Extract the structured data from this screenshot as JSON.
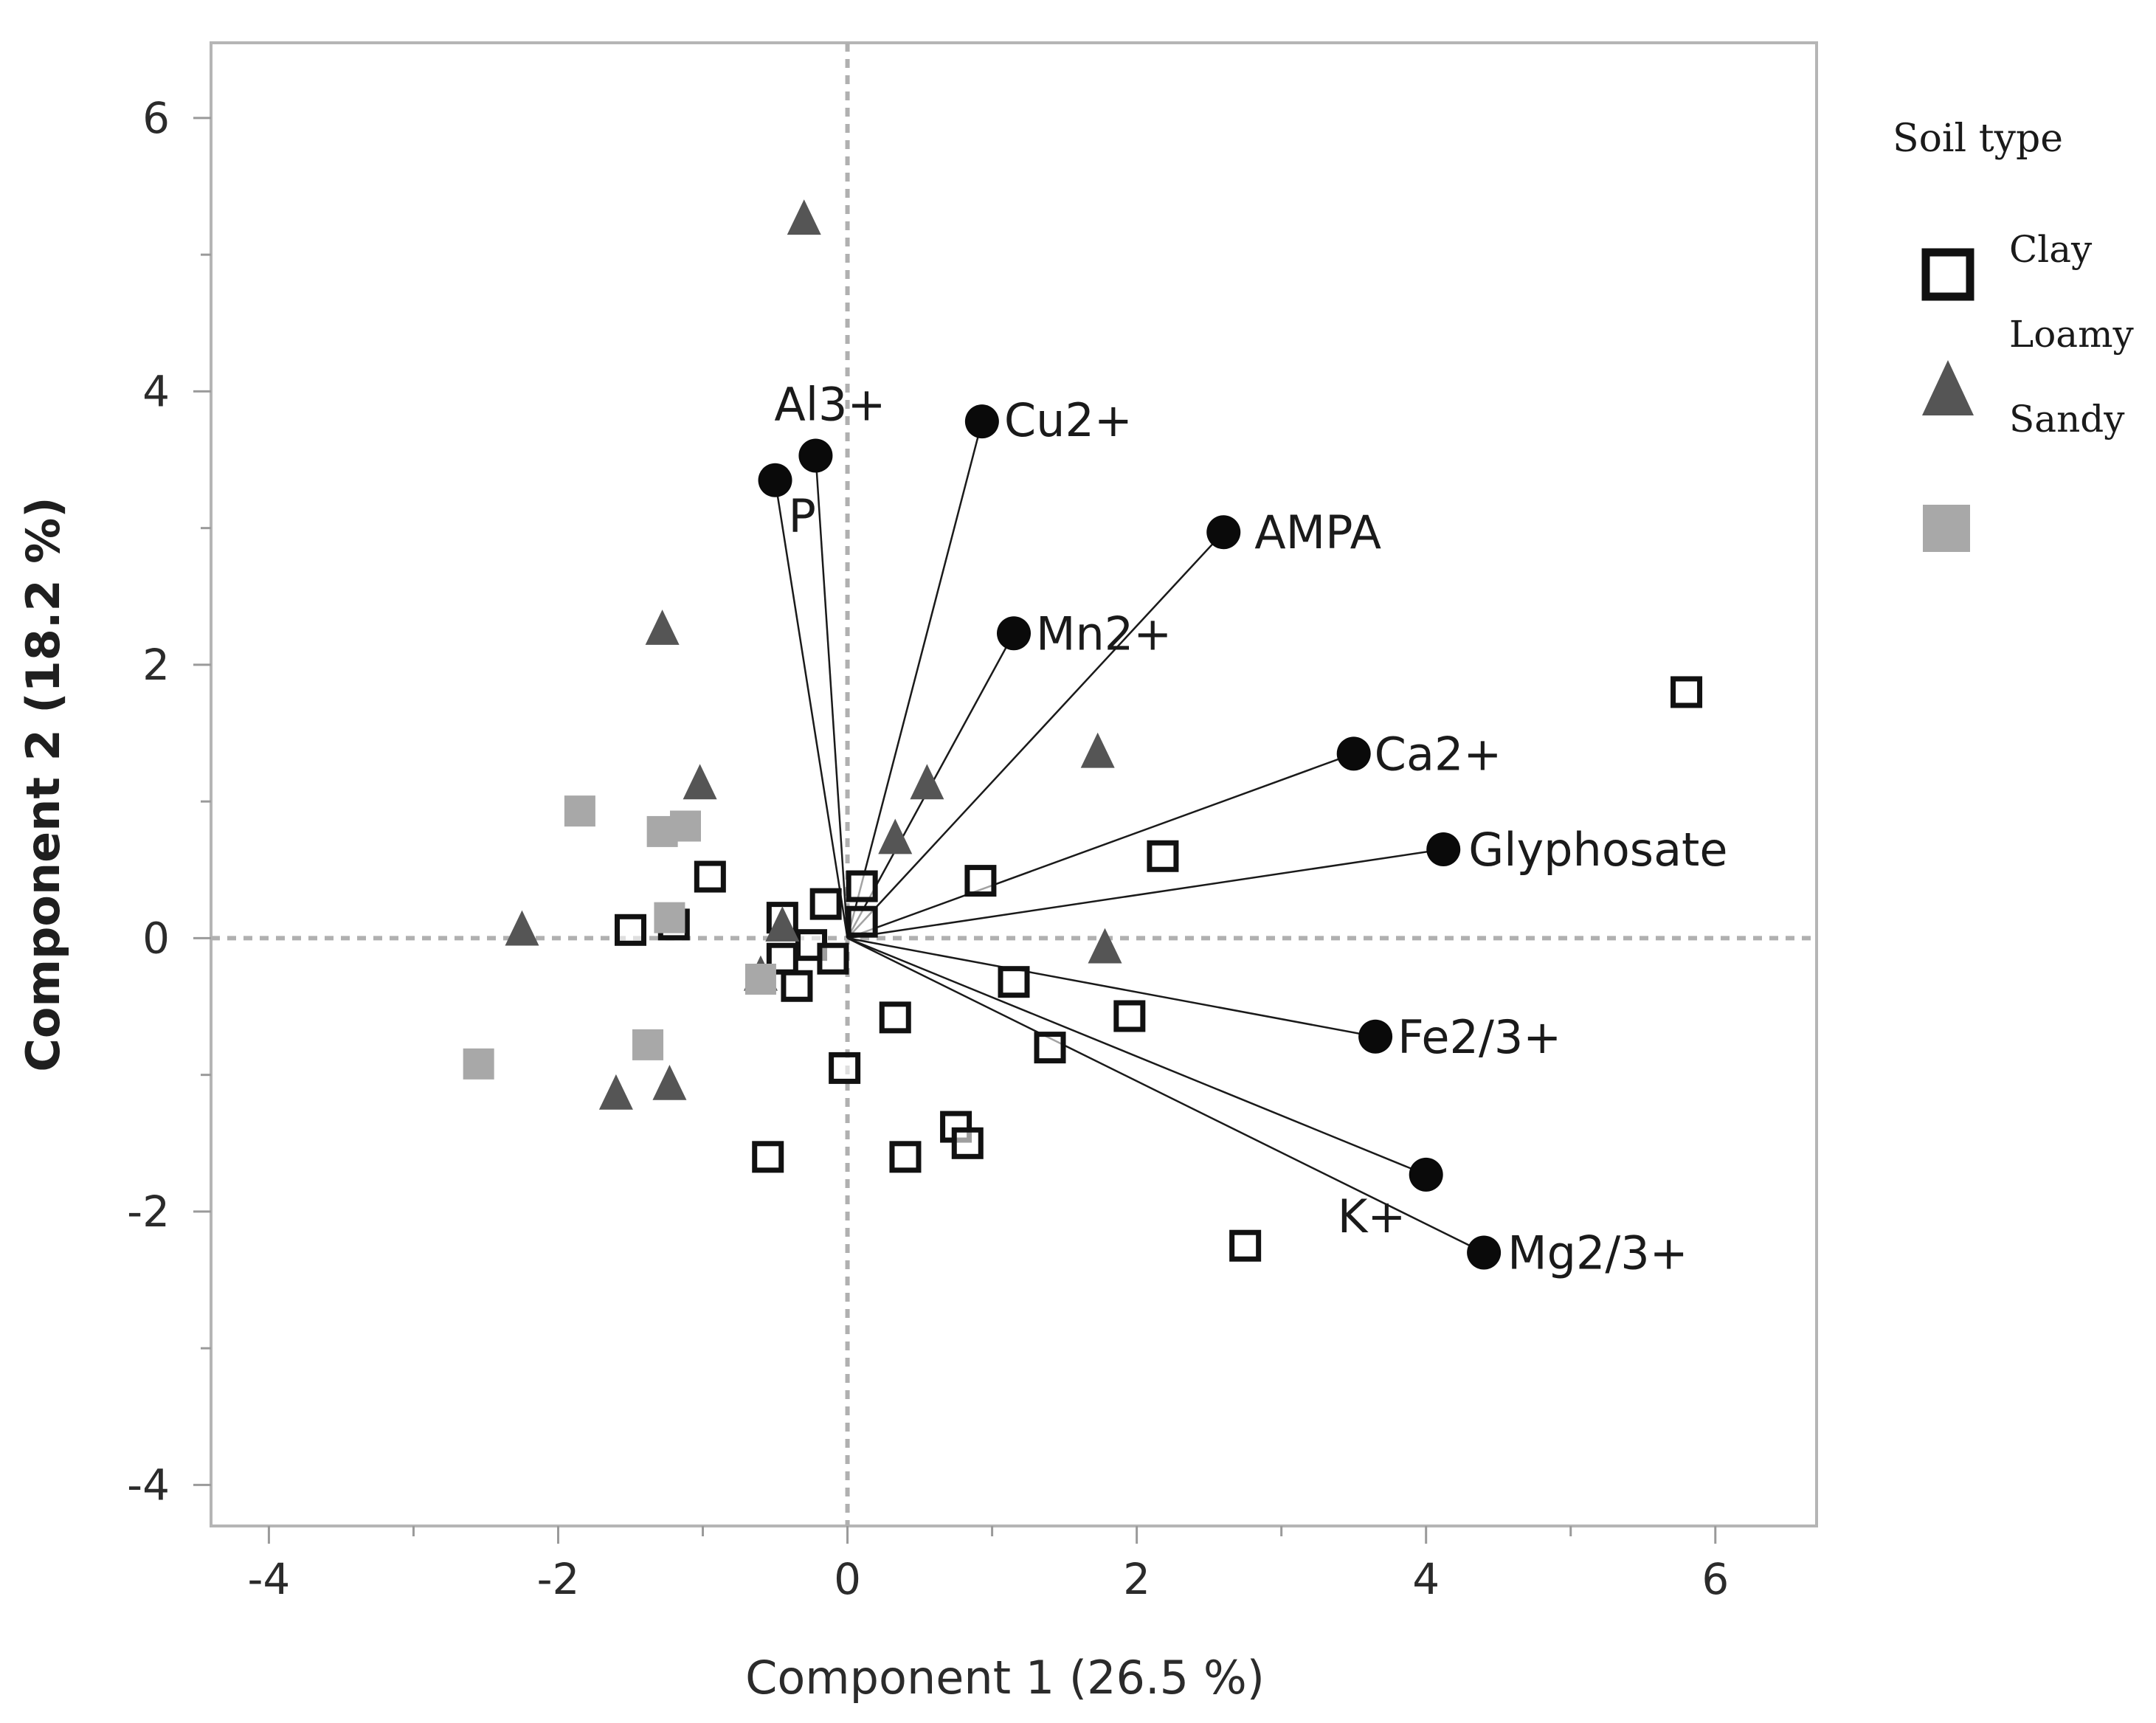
{
  "chart_data": {
    "type": "scatter",
    "title": "",
    "xlabel": "Component 1  (26.5 %)",
    "ylabel": "Component 2  (18.2 %)",
    "xlim": [
      -4.4,
      6.7
    ],
    "ylim": [
      -4.3,
      6.55
    ],
    "xticks": [
      -4,
      -2,
      0,
      2,
      4,
      6
    ],
    "xtick_labels": [
      "-4",
      "-2",
      "0",
      "2",
      "4",
      "6"
    ],
    "yticks": [
      -4,
      -2,
      0,
      2,
      4,
      6
    ],
    "ytick_labels": [
      "-4",
      "-2",
      "0",
      "2",
      "4",
      "6"
    ],
    "reference_lines": {
      "x": 0,
      "y": 0
    },
    "legend": {
      "title": "Soil type",
      "position": "right",
      "labels": [
        "Clay",
        "Loamy",
        "Sandy"
      ]
    },
    "series": [
      {
        "name": "Clay",
        "marker": "open-square",
        "color": "#111111",
        "points": [
          {
            "x": 5.8,
            "y": 1.8
          },
          {
            "x": 2.18,
            "y": 0.6
          },
          {
            "x": 0.92,
            "y": 0.42
          },
          {
            "x": 0.1,
            "y": 0.38
          },
          {
            "x": -0.95,
            "y": 0.45
          },
          {
            "x": -1.5,
            "y": 0.06
          },
          {
            "x": -1.2,
            "y": 0.1
          },
          {
            "x": -0.45,
            "y": 0.15
          },
          {
            "x": -0.15,
            "y": 0.25
          },
          {
            "x": 0.1,
            "y": 0.12
          },
          {
            "x": -0.25,
            "y": -0.05
          },
          {
            "x": -0.45,
            "y": -0.15
          },
          {
            "x": -0.1,
            "y": -0.15
          },
          {
            "x": -0.35,
            "y": -0.35
          },
          {
            "x": 1.15,
            "y": -0.32
          },
          {
            "x": 0.33,
            "y": -0.58
          },
          {
            "x": 1.95,
            "y": -0.57
          },
          {
            "x": 1.4,
            "y": -0.8
          },
          {
            "x": -0.02,
            "y": -0.95
          },
          {
            "x": 0.75,
            "y": -1.38
          },
          {
            "x": 0.83,
            "y": -1.5
          },
          {
            "x": -0.55,
            "y": -1.6
          },
          {
            "x": 0.4,
            "y": -1.6
          },
          {
            "x": 2.75,
            "y": -2.25
          }
        ]
      },
      {
        "name": "Loamy",
        "marker": "triangle",
        "color": "#555555",
        "points": [
          {
            "x": -0.3,
            "y": 5.25
          },
          {
            "x": -1.28,
            "y": 2.25
          },
          {
            "x": -1.02,
            "y": 1.12
          },
          {
            "x": 0.55,
            "y": 1.12
          },
          {
            "x": 0.33,
            "y": 0.72
          },
          {
            "x": 1.73,
            "y": 1.35
          },
          {
            "x": -2.25,
            "y": 0.05
          },
          {
            "x": -0.45,
            "y": 0.08
          },
          {
            "x": 1.78,
            "y": -0.08
          },
          {
            "x": -0.6,
            "y": -0.28
          },
          {
            "x": -1.6,
            "y": -1.15
          },
          {
            "x": -1.23,
            "y": -1.08
          }
        ]
      },
      {
        "name": "Sandy",
        "marker": "filled-square",
        "color": "#a8a8a8",
        "points": [
          {
            "x": -1.85,
            "y": 0.93
          },
          {
            "x": -1.28,
            "y": 0.78
          },
          {
            "x": -1.12,
            "y": 0.82
          },
          {
            "x": -1.23,
            "y": 0.15
          },
          {
            "x": -0.6,
            "y": -0.3
          },
          {
            "x": -2.55,
            "y": -0.92
          },
          {
            "x": -1.38,
            "y": -0.78
          }
        ]
      }
    ],
    "loadings": [
      {
        "name": "Al3+",
        "x": -0.22,
        "y": 3.53
      },
      {
        "name": "P",
        "x": -0.5,
        "y": 3.35
      },
      {
        "name": "Cu2+",
        "x": 0.93,
        "y": 3.78
      },
      {
        "name": "AMPA",
        "x": 2.6,
        "y": 2.97
      },
      {
        "name": "Mn2+",
        "x": 1.15,
        "y": 2.23
      },
      {
        "name": "Ca2+",
        "x": 3.5,
        "y": 1.35
      },
      {
        "name": "Glyphosate",
        "x": 4.12,
        "y": 0.65
      },
      {
        "name": "Fe2/3+",
        "x": 3.65,
        "y": -0.72
      },
      {
        "name": "K+",
        "x": 4.0,
        "y": -1.73
      },
      {
        "name": "Mg2/3+",
        "x": 4.4,
        "y": -2.3
      }
    ]
  }
}
